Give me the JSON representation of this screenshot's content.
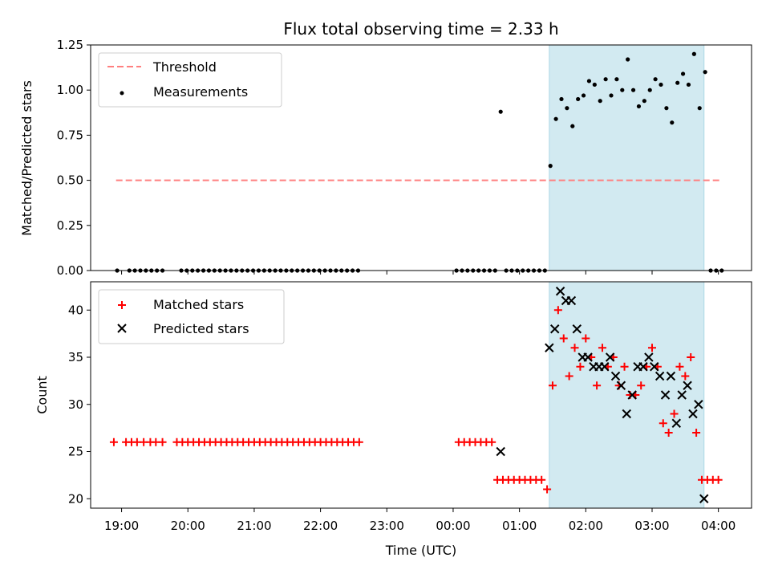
{
  "chart_data": {
    "title": "Flux total observing time = 2.33 h",
    "xlabel": "Time (UTC)",
    "x_is_time": true,
    "xlim": [
      "18:32",
      "04:30"
    ],
    "xticks": [
      "19:00",
      "20:00",
      "21:00",
      "22:00",
      "23:00",
      "00:00",
      "01:00",
      "02:00",
      "03:00",
      "04:00"
    ],
    "highlight_span": {
      "start": "01:27",
      "end": "03:47",
      "color": "#add8e6"
    },
    "panels": [
      {
        "type": "scatter",
        "ylabel": "Matched/Predicted stars",
        "ylim": [
          0,
          1.25
        ],
        "yticks": [
          "0.00",
          "0.25",
          "0.50",
          "0.75",
          "1.00",
          "1.25"
        ],
        "legend_position": "upper left",
        "threshold": {
          "name": "Threshold",
          "value": 0.5,
          "x_range": [
            "18:55",
            "04:02"
          ],
          "color": "#ff7f7f"
        },
        "series": [
          {
            "name": "Measurements",
            "marker": "dot",
            "color": "#000000",
            "x": [
              "18:56",
              "19:07",
              "19:12",
              "19:17",
              "19:22",
              "19:27",
              "19:32",
              "19:37",
              "19:54",
              "19:59",
              "20:04",
              "20:09",
              "20:14",
              "20:19",
              "20:24",
              "20:29",
              "20:34",
              "20:39",
              "20:44",
              "20:49",
              "20:54",
              "20:59",
              "21:04",
              "21:09",
              "21:14",
              "21:19",
              "21:24",
              "21:29",
              "21:34",
              "21:39",
              "21:44",
              "21:49",
              "21:54",
              "21:59",
              "22:04",
              "22:09",
              "22:14",
              "22:19",
              "22:24",
              "22:29",
              "22:34",
              "00:03",
              "00:08",
              "00:13",
              "00:18",
              "00:23",
              "00:28",
              "00:33",
              "00:38",
              "00:43",
              "00:48",
              "00:53",
              "00:58",
              "01:03",
              "01:08",
              "01:13",
              "01:18",
              "01:23",
              "01:28",
              "01:33",
              "01:38",
              "01:43",
              "01:48",
              "01:53",
              "01:58",
              "02:03",
              "02:08",
              "02:13",
              "02:18",
              "02:23",
              "02:28",
              "02:33",
              "02:38",
              "02:43",
              "02:48",
              "02:53",
              "02:58",
              "03:03",
              "03:08",
              "03:13",
              "03:18",
              "03:23",
              "03:28",
              "03:33",
              "03:38",
              "03:43",
              "03:48",
              "03:53",
              "03:58",
              "04:03"
            ],
            "y": [
              0,
              0,
              0,
              0,
              0,
              0,
              0,
              0,
              0,
              0,
              0,
              0,
              0,
              0,
              0,
              0,
              0,
              0,
              0,
              0,
              0,
              0,
              0,
              0,
              0,
              0,
              0,
              0,
              0,
              0,
              0,
              0,
              0,
              0,
              0,
              0,
              0,
              0,
              0,
              0,
              0,
              0,
              0,
              0,
              0,
              0,
              0,
              0,
              0,
              0.88,
              0,
              0,
              0,
              0,
              0,
              0,
              0,
              0,
              0.58,
              0.84,
              0.95,
              0.9,
              0.8,
              0.95,
              0.97,
              1.05,
              1.03,
              0.94,
              1.06,
              0.97,
              1.06,
              1.0,
              1.17,
              1.0,
              0.91,
              0.94,
              1.0,
              1.06,
              1.03,
              0.9,
              0.82,
              1.04,
              1.09,
              1.03,
              1.2,
              0.9,
              1.1,
              0,
              0,
              0
            ]
          }
        ]
      },
      {
        "type": "scatter",
        "ylabel": "Count",
        "ylim": [
          19,
          43
        ],
        "yticks": [
          "20",
          "25",
          "30",
          "35",
          "40"
        ],
        "legend_position": "upper left",
        "series": [
          {
            "name": "Matched stars",
            "marker": "plus",
            "color": "#ff0000",
            "x": [
              "18:53",
              "19:04",
              "19:09",
              "19:14",
              "19:20",
              "19:26",
              "19:31",
              "19:37",
              "19:50",
              "19:55",
              "20:00",
              "20:05",
              "20:10",
              "20:15",
              "20:20",
              "20:25",
              "20:30",
              "20:35",
              "20:40",
              "20:45",
              "20:50",
              "20:55",
              "21:00",
              "21:05",
              "21:10",
              "21:15",
              "21:20",
              "21:25",
              "21:30",
              "21:35",
              "21:40",
              "21:45",
              "21:50",
              "21:55",
              "22:00",
              "22:05",
              "22:10",
              "22:15",
              "22:20",
              "22:25",
              "22:30",
              "22:35",
              "00:05",
              "00:10",
              "00:15",
              "00:20",
              "00:25",
              "00:30",
              "00:35",
              "00:40",
              "00:45",
              "00:50",
              "00:55",
              "01:00",
              "01:05",
              "01:10",
              "01:15",
              "01:20",
              "01:25",
              "01:30",
              "01:35",
              "01:40",
              "01:45",
              "01:50",
              "01:55",
              "02:00",
              "02:05",
              "02:10",
              "02:15",
              "02:20",
              "02:25",
              "02:30",
              "02:35",
              "02:40",
              "02:45",
              "02:50",
              "02:55",
              "03:00",
              "03:05",
              "03:10",
              "03:15",
              "03:20",
              "03:25",
              "03:30",
              "03:35",
              "03:40",
              "03:45",
              "03:50",
              "03:55",
              "04:00"
            ],
            "y": [
              26,
              26,
              26,
              26,
              26,
              26,
              26,
              26,
              26,
              26,
              26,
              26,
              26,
              26,
              26,
              26,
              26,
              26,
              26,
              26,
              26,
              26,
              26,
              26,
              26,
              26,
              26,
              26,
              26,
              26,
              26,
              26,
              26,
              26,
              26,
              26,
              26,
              26,
              26,
              26,
              26,
              26,
              26,
              26,
              26,
              26,
              26,
              26,
              26,
              22,
              22,
              22,
              22,
              22,
              22,
              22,
              22,
              22,
              21,
              32,
              40,
              37,
              33,
              36,
              34,
              37,
              35,
              32,
              36,
              34,
              35,
              32,
              34,
              31,
              31,
              32,
              34,
              36,
              34,
              28,
              27,
              29,
              34,
              33,
              35,
              27,
              22,
              22,
              22,
              22
            ]
          },
          {
            "name": "Predicted stars",
            "marker": "x",
            "color": "#000000",
            "x": [
              "00:43",
              "01:27",
              "01:32",
              "01:37",
              "01:42",
              "01:47",
              "01:52",
              "01:57",
              "02:02",
              "02:07",
              "02:12",
              "02:17",
              "02:22",
              "02:27",
              "02:32",
              "02:37",
              "02:42",
              "02:47",
              "02:52",
              "02:57",
              "03:02",
              "03:07",
              "03:12",
              "03:17",
              "03:22",
              "03:27",
              "03:32",
              "03:37",
              "03:42",
              "03:47"
            ],
            "y": [
              25,
              36,
              38,
              42,
              41,
              41,
              38,
              35,
              35,
              34,
              34,
              34,
              35,
              33,
              32,
              29,
              31,
              34,
              34,
              35,
              34,
              33,
              31,
              33,
              28,
              31,
              32,
              29,
              30,
              20
            ]
          }
        ]
      }
    ]
  }
}
